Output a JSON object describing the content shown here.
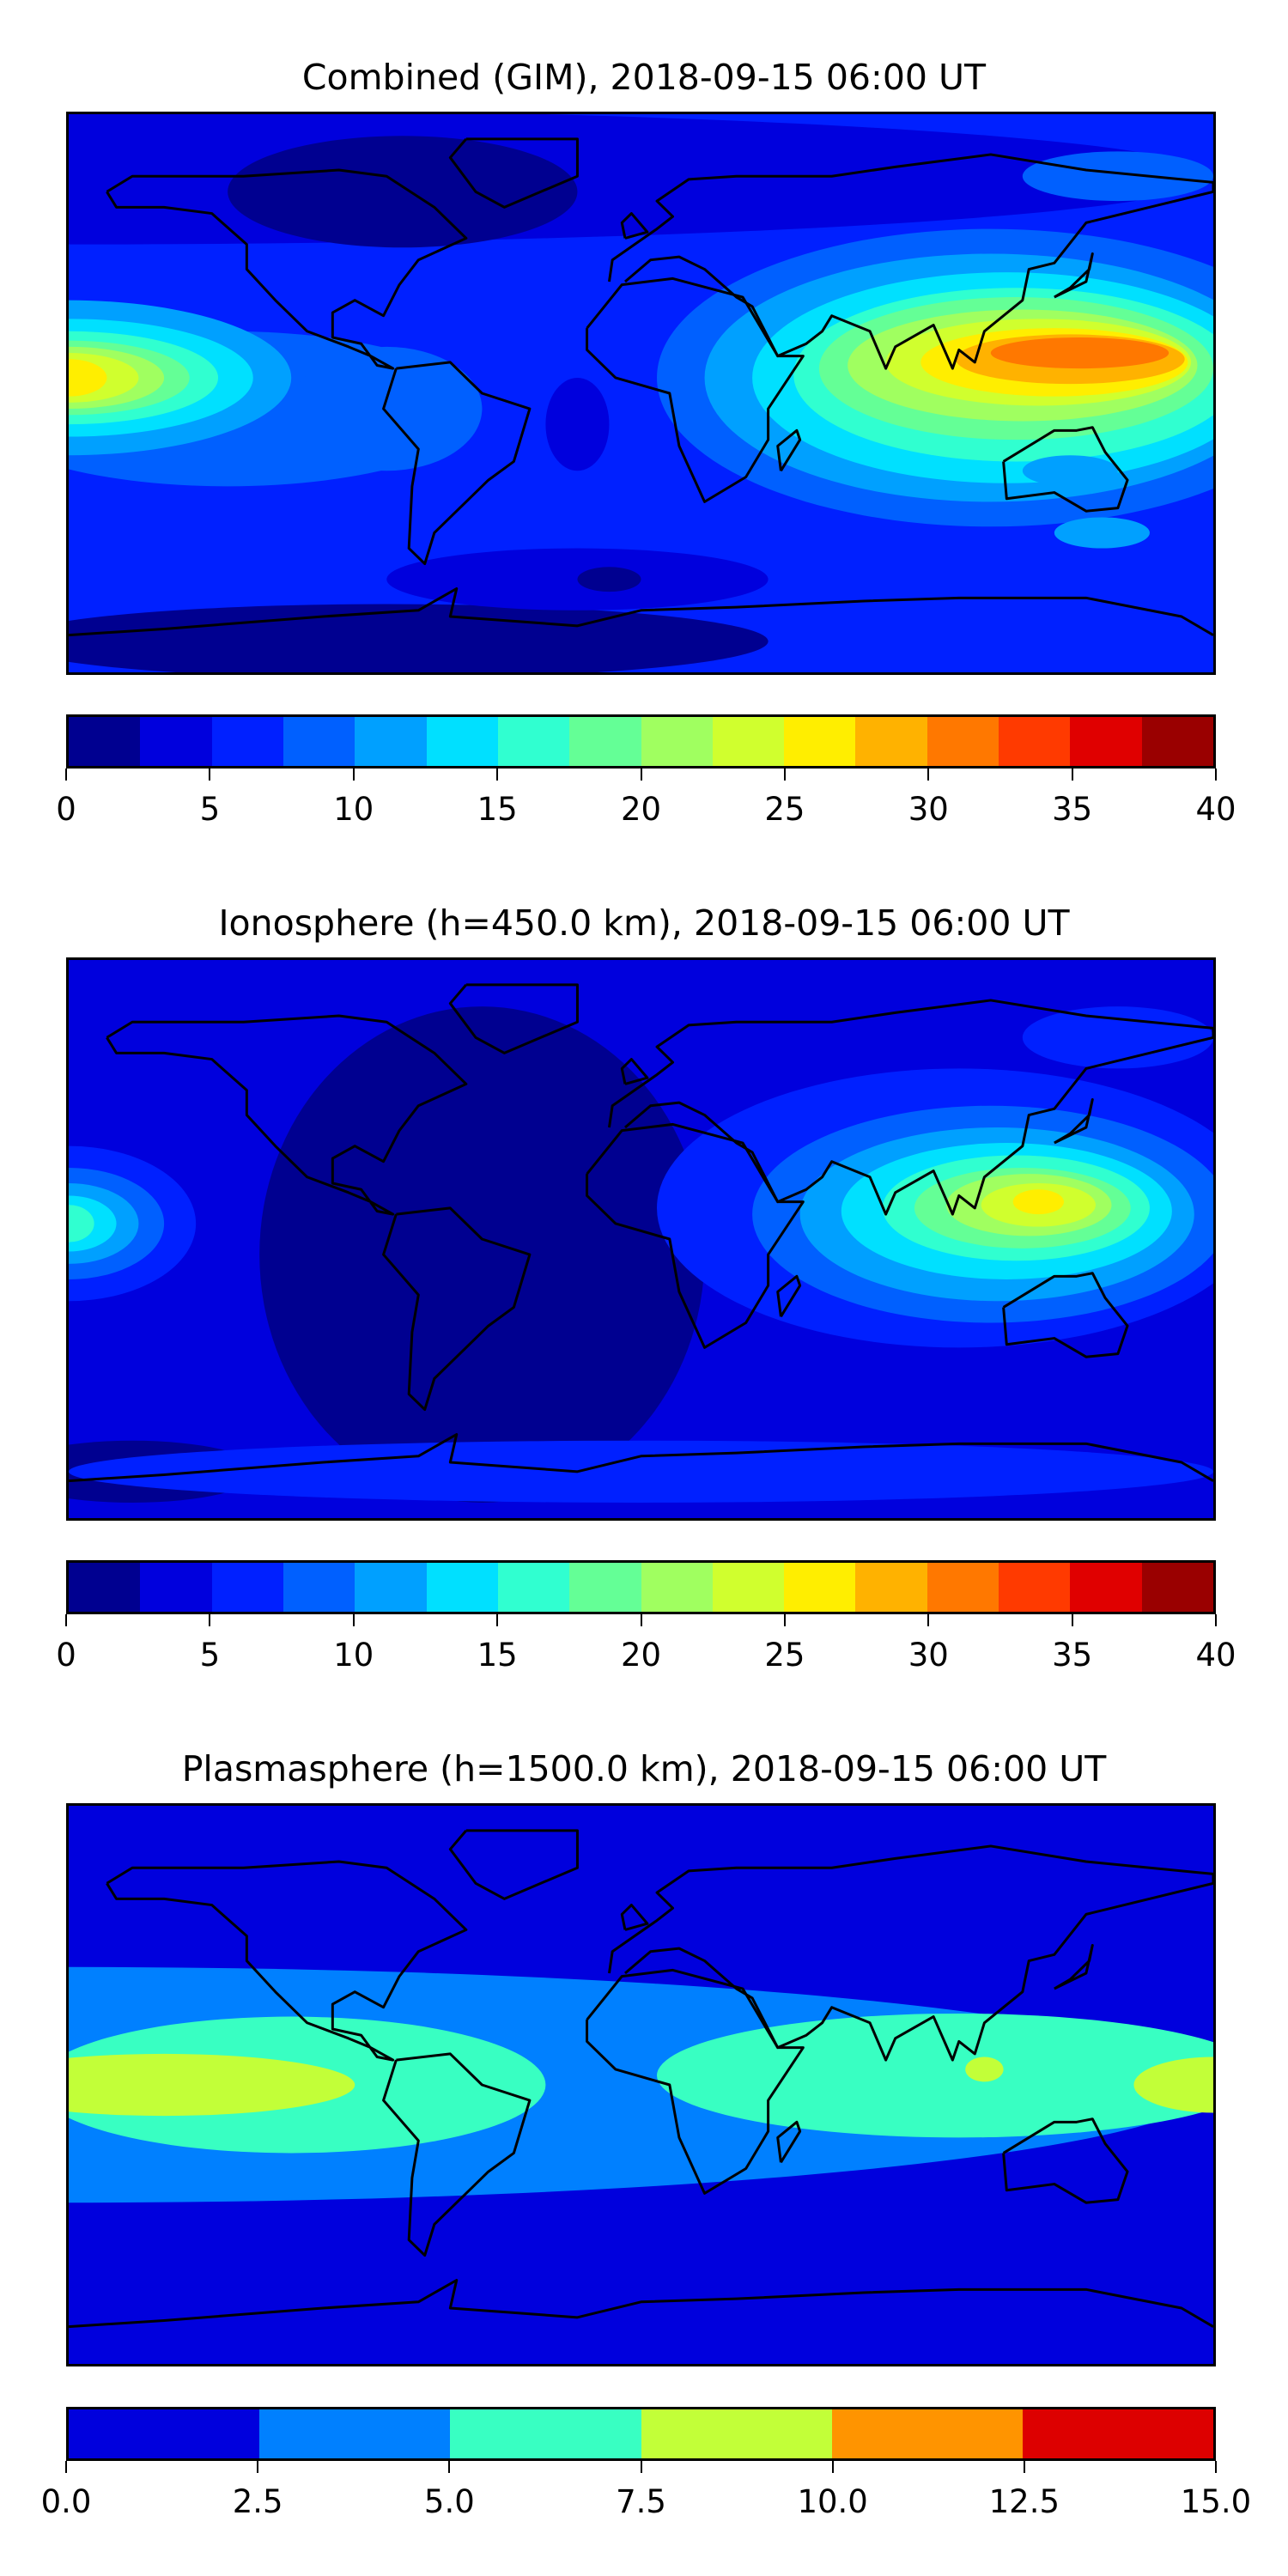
{
  "chart_data": [
    {
      "type": "heatmap",
      "subtype": "filled-contour-map",
      "title": "Combined (GIM), 2018-09-15 06:00 UT",
      "levels": [
        0,
        2.5,
        5,
        7.5,
        10,
        12.5,
        15,
        17.5,
        20,
        22.5,
        25,
        27.5,
        30,
        32.5,
        35,
        37.5,
        40
      ],
      "colors": [
        "#000090",
        "#0000dd",
        "#0020ff",
        "#0060ff",
        "#00a0ff",
        "#00e0ff",
        "#30ffd0",
        "#64ff96",
        "#a0ff60",
        "#d0ff2e",
        "#ffee00",
        "#ffb200",
        "#ff7800",
        "#ff3a00",
        "#e00000",
        "#9a0000"
      ],
      "tick_labels": [
        "0",
        "5",
        "10",
        "15",
        "20",
        "25",
        "30",
        "35",
        "40"
      ],
      "tick_values": [
        0,
        5,
        10,
        15,
        20,
        25,
        30,
        35,
        40
      ],
      "range": [
        0,
        40
      ],
      "max_region": "Southeast Asia / western Pacific, ~30-32.5"
    },
    {
      "type": "heatmap",
      "subtype": "filled-contour-map",
      "title": "Ionosphere  (h=450.0 km), 2018-09-15 06:00 UT",
      "levels": [
        0,
        2.5,
        5,
        7.5,
        10,
        12.5,
        15,
        17.5,
        20,
        22.5,
        25,
        27.5,
        30,
        32.5,
        35,
        37.5,
        40
      ],
      "colors": [
        "#000090",
        "#0000dd",
        "#0020ff",
        "#0060ff",
        "#00a0ff",
        "#00e0ff",
        "#30ffd0",
        "#64ff96",
        "#a0ff60",
        "#d0ff2e",
        "#ffee00",
        "#ffb200",
        "#ff7800",
        "#ff3a00",
        "#e00000",
        "#9a0000"
      ],
      "tick_labels": [
        "0",
        "5",
        "10",
        "15",
        "20",
        "25",
        "30",
        "35",
        "40"
      ],
      "tick_values": [
        0,
        5,
        10,
        15,
        20,
        25,
        30,
        35,
        40
      ],
      "range": [
        0,
        40
      ],
      "max_region": "Southeast Asia, ~25-27.5"
    },
    {
      "type": "heatmap",
      "subtype": "filled-contour-map",
      "title": "Plasmasphere (h=1500.0 km), 2018-09-15 06:00 UT",
      "levels": [
        0,
        2.5,
        5,
        7.5,
        10,
        12.5,
        15
      ],
      "colors": [
        "#0000dd",
        "#0080ff",
        "#38ffc2",
        "#c2ff38",
        "#ff9400",
        "#dd0000"
      ],
      "tick_labels": [
        "0.0",
        "2.5",
        "5.0",
        "7.5",
        "10.0",
        "12.5",
        "15.0"
      ],
      "tick_values": [
        0,
        2.5,
        5,
        7.5,
        10,
        12.5,
        15
      ],
      "range": [
        0,
        15
      ],
      "max_region": "Equatorial Pacific, ~7.5-10"
    }
  ]
}
